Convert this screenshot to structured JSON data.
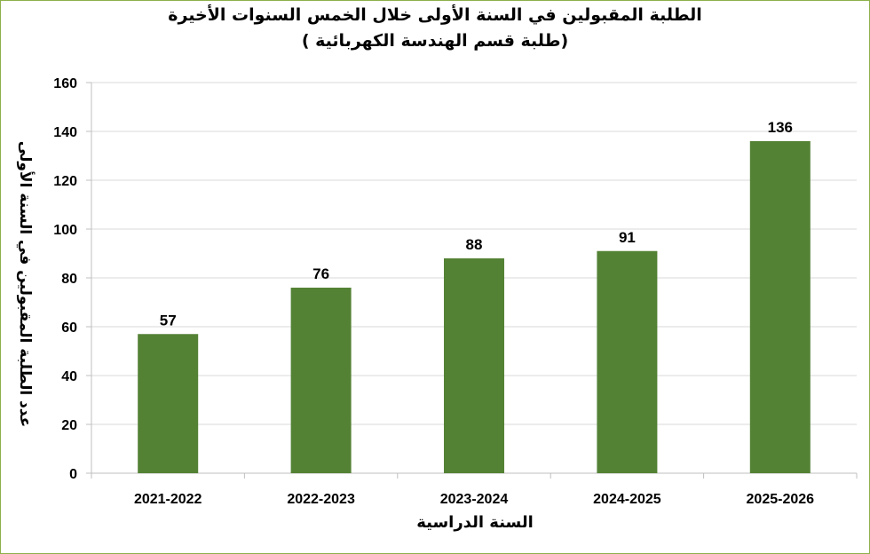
{
  "chart_data": {
    "type": "bar",
    "title": "الطلبة المقبولين في السنة الأولى خلال الخمس السنوات الأخيرة",
    "subtitle": "(طلبة قسم الهندسة الكهربائية )",
    "xlabel": "السنة الدراسية",
    "ylabel": "عدد الطلبة المقبولين في السنة الأولى",
    "categories": [
      "2021-2022",
      "2022-2023",
      "2023-2024",
      "2024-2025",
      "2025-2026"
    ],
    "values": [
      57,
      76,
      88,
      91,
      136
    ],
    "data_labels": [
      "57",
      "76",
      "88",
      "91",
      "136"
    ],
    "ylim": [
      0,
      160
    ],
    "yticks": [
      0,
      20,
      40,
      60,
      80,
      100,
      120,
      140,
      160
    ],
    "grid": true,
    "legend": "none",
    "bar_color": "#548235",
    "frame_color": "#8db04a",
    "grid_color": "#d9d9d9"
  }
}
